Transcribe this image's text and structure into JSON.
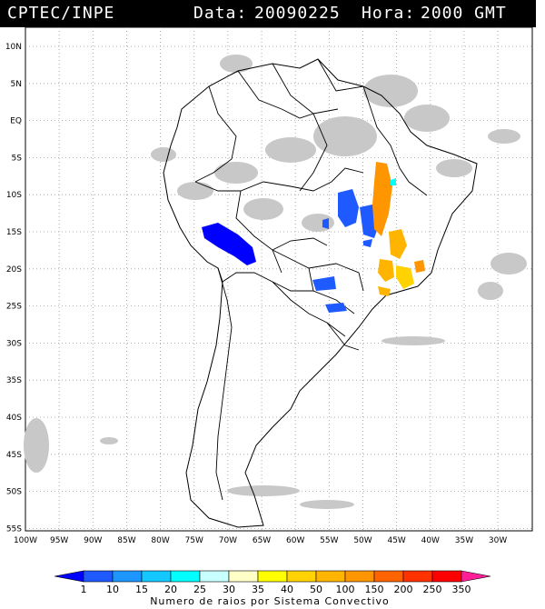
{
  "header": {
    "org": "CPTEC/INPE",
    "date_label": "Data:",
    "date_value": "20090225",
    "hour_label": "Hora:",
    "hour_value": "2000 GMT"
  },
  "lat_labels": [
    "10N",
    "5N",
    "EQ",
    "5S",
    "10S",
    "15S",
    "20S",
    "25S",
    "30S",
    "35S",
    "40S",
    "45S",
    "50S",
    "55S"
  ],
  "lon_labels": [
    "100W",
    "95W",
    "90W",
    "85W",
    "80W",
    "75W",
    "70W",
    "65W",
    "60W",
    "55W",
    "50W",
    "45W",
    "40W",
    "35W",
    "30W"
  ],
  "legend": {
    "title": "Numero de raios por Sistema Convectivo",
    "ticks": [
      "1",
      "10",
      "15",
      "20",
      "25",
      "30",
      "35",
      "40",
      "50",
      "100",
      "150",
      "200",
      "250",
      "350"
    ],
    "colors": [
      "#0000ff",
      "#1e5aff",
      "#1e96ff",
      "#14c8ff",
      "#00ffff",
      "#c8ffff",
      "#ffffc8",
      "#ffff00",
      "#ffd200",
      "#ffb400",
      "#ff9600",
      "#ff6400",
      "#ff3200",
      "#ff0000",
      "#ff1e96"
    ]
  }
}
